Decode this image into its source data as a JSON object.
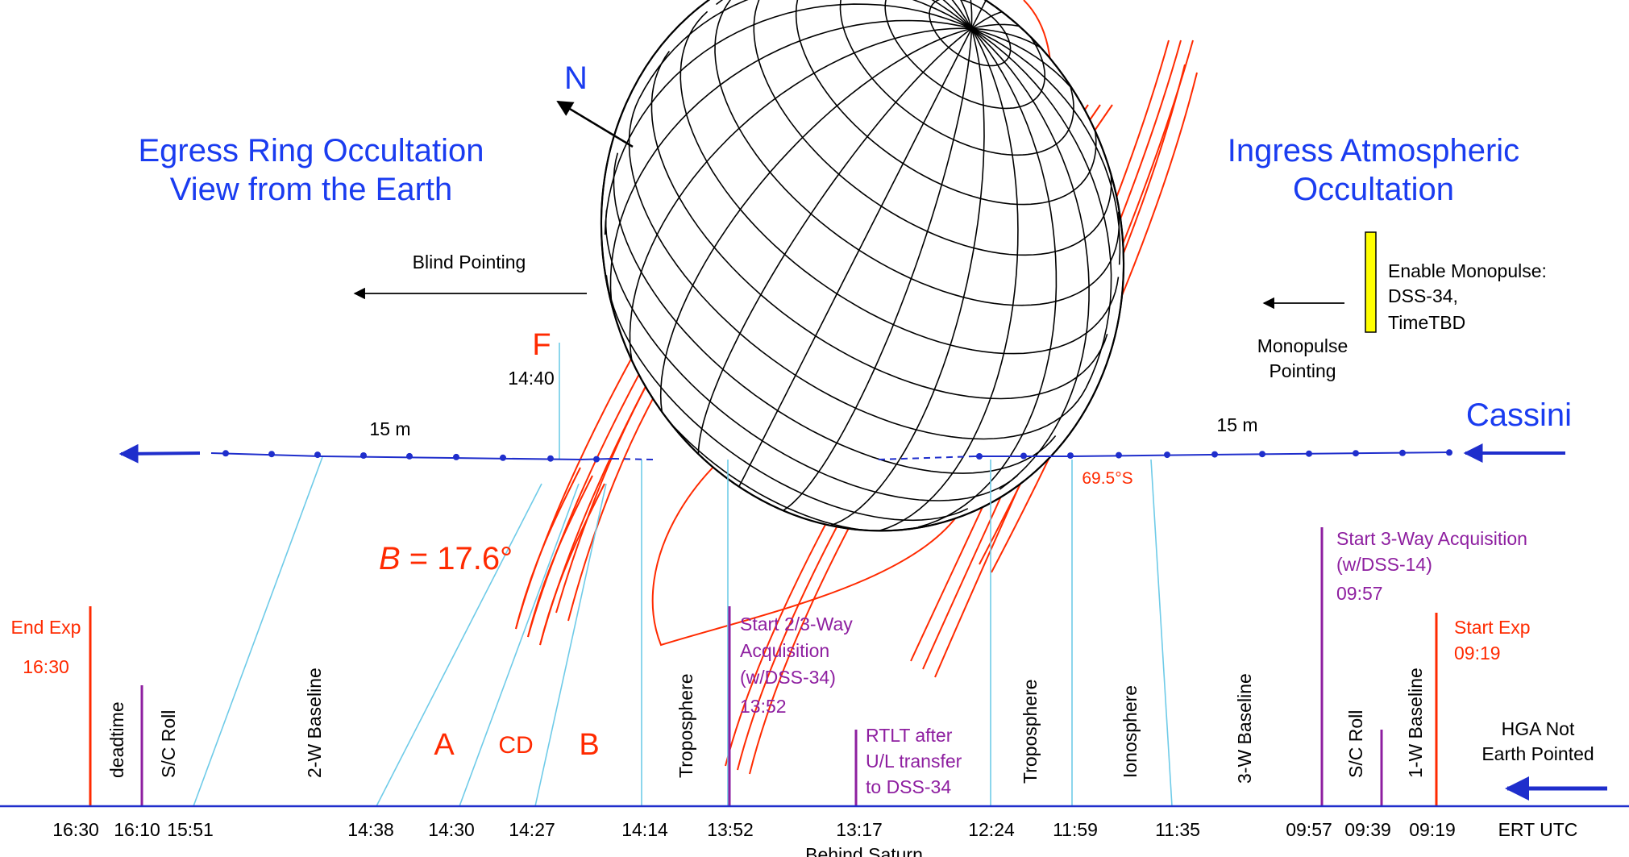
{
  "colors": {
    "title_blue": "#1a3cf0",
    "annotation_red": "#ff2a00",
    "event_purple": "#8e1fa0",
    "ray_cyan": "#6fcbe8",
    "track_blue": "#1f2ecc",
    "monopulse_yellow": "#ffff00"
  },
  "labels": {
    "north": "N",
    "egress_line1": "Egress Ring Occultation",
    "egress_line2": "View from the Earth",
    "ingress_line1": "Ingress Atmospheric",
    "ingress_line2": "Occultation",
    "blind_pointing": "Blind Pointing",
    "monopulse_pointing_1": "Monopulse",
    "monopulse_pointing_2": "Pointing",
    "enable_monopulse_1": "Enable Monopulse:",
    "enable_monopulse_2": "DSS-34,",
    "enable_monopulse_3": "TimeTBD",
    "f_label": "F",
    "f_time": "14:40",
    "span_left": "15 m",
    "span_right": "15 m",
    "cassini": "Cassini",
    "latitude": "69.5°S",
    "b_angle_symbol": "B",
    "b_angle_value": " = 17.6°",
    "end_exp_1": "End Exp",
    "end_exp_2": "16:30",
    "start_exp_1": "Start Exp",
    "start_exp_2": "09:19",
    "start_3way_1": "Start 3-Way Acquisition",
    "start_3way_2": "(w/DSS-14)",
    "start_3way_3": "09:57",
    "start_23way_1": "Start 2/3-Way",
    "start_23way_2": "Acquisition",
    "start_23way_3": "(w/DSS-34)",
    "start_23way_4": "13:52",
    "rtlt_1": "RTLT after",
    "rtlt_2": "U/L transfer",
    "rtlt_3": "to DSS-34",
    "ring_a": "A",
    "ring_cd": "CD",
    "ring_b": "B",
    "v_deadtime": "deadtime",
    "v_sc_roll_left": "S/C Roll",
    "v_2w_baseline": "2-W Baseline",
    "v_troposphere_left": "Troposphere",
    "v_troposphere_right": "Troposphere",
    "v_ionosphere": "Ionosphere",
    "v_3w_baseline": "3-W Baseline",
    "v_sc_roll_right": "S/C Roll",
    "v_1w_baseline": "1-W Baseline",
    "hga_1": "HGA Not",
    "hga_2": "Earth Pointed",
    "ert_utc": "ERT UTC",
    "behind_saturn": "Behind Saturn"
  },
  "timeline_ticks": [
    "16:30",
    "16:10",
    "15:51",
    "14:38",
    "14:30",
    "14:27",
    "14:14",
    "13:52",
    "13:17",
    "12:24",
    "11:59",
    "11:35",
    "09:57",
    "09:39",
    "09:19"
  ]
}
